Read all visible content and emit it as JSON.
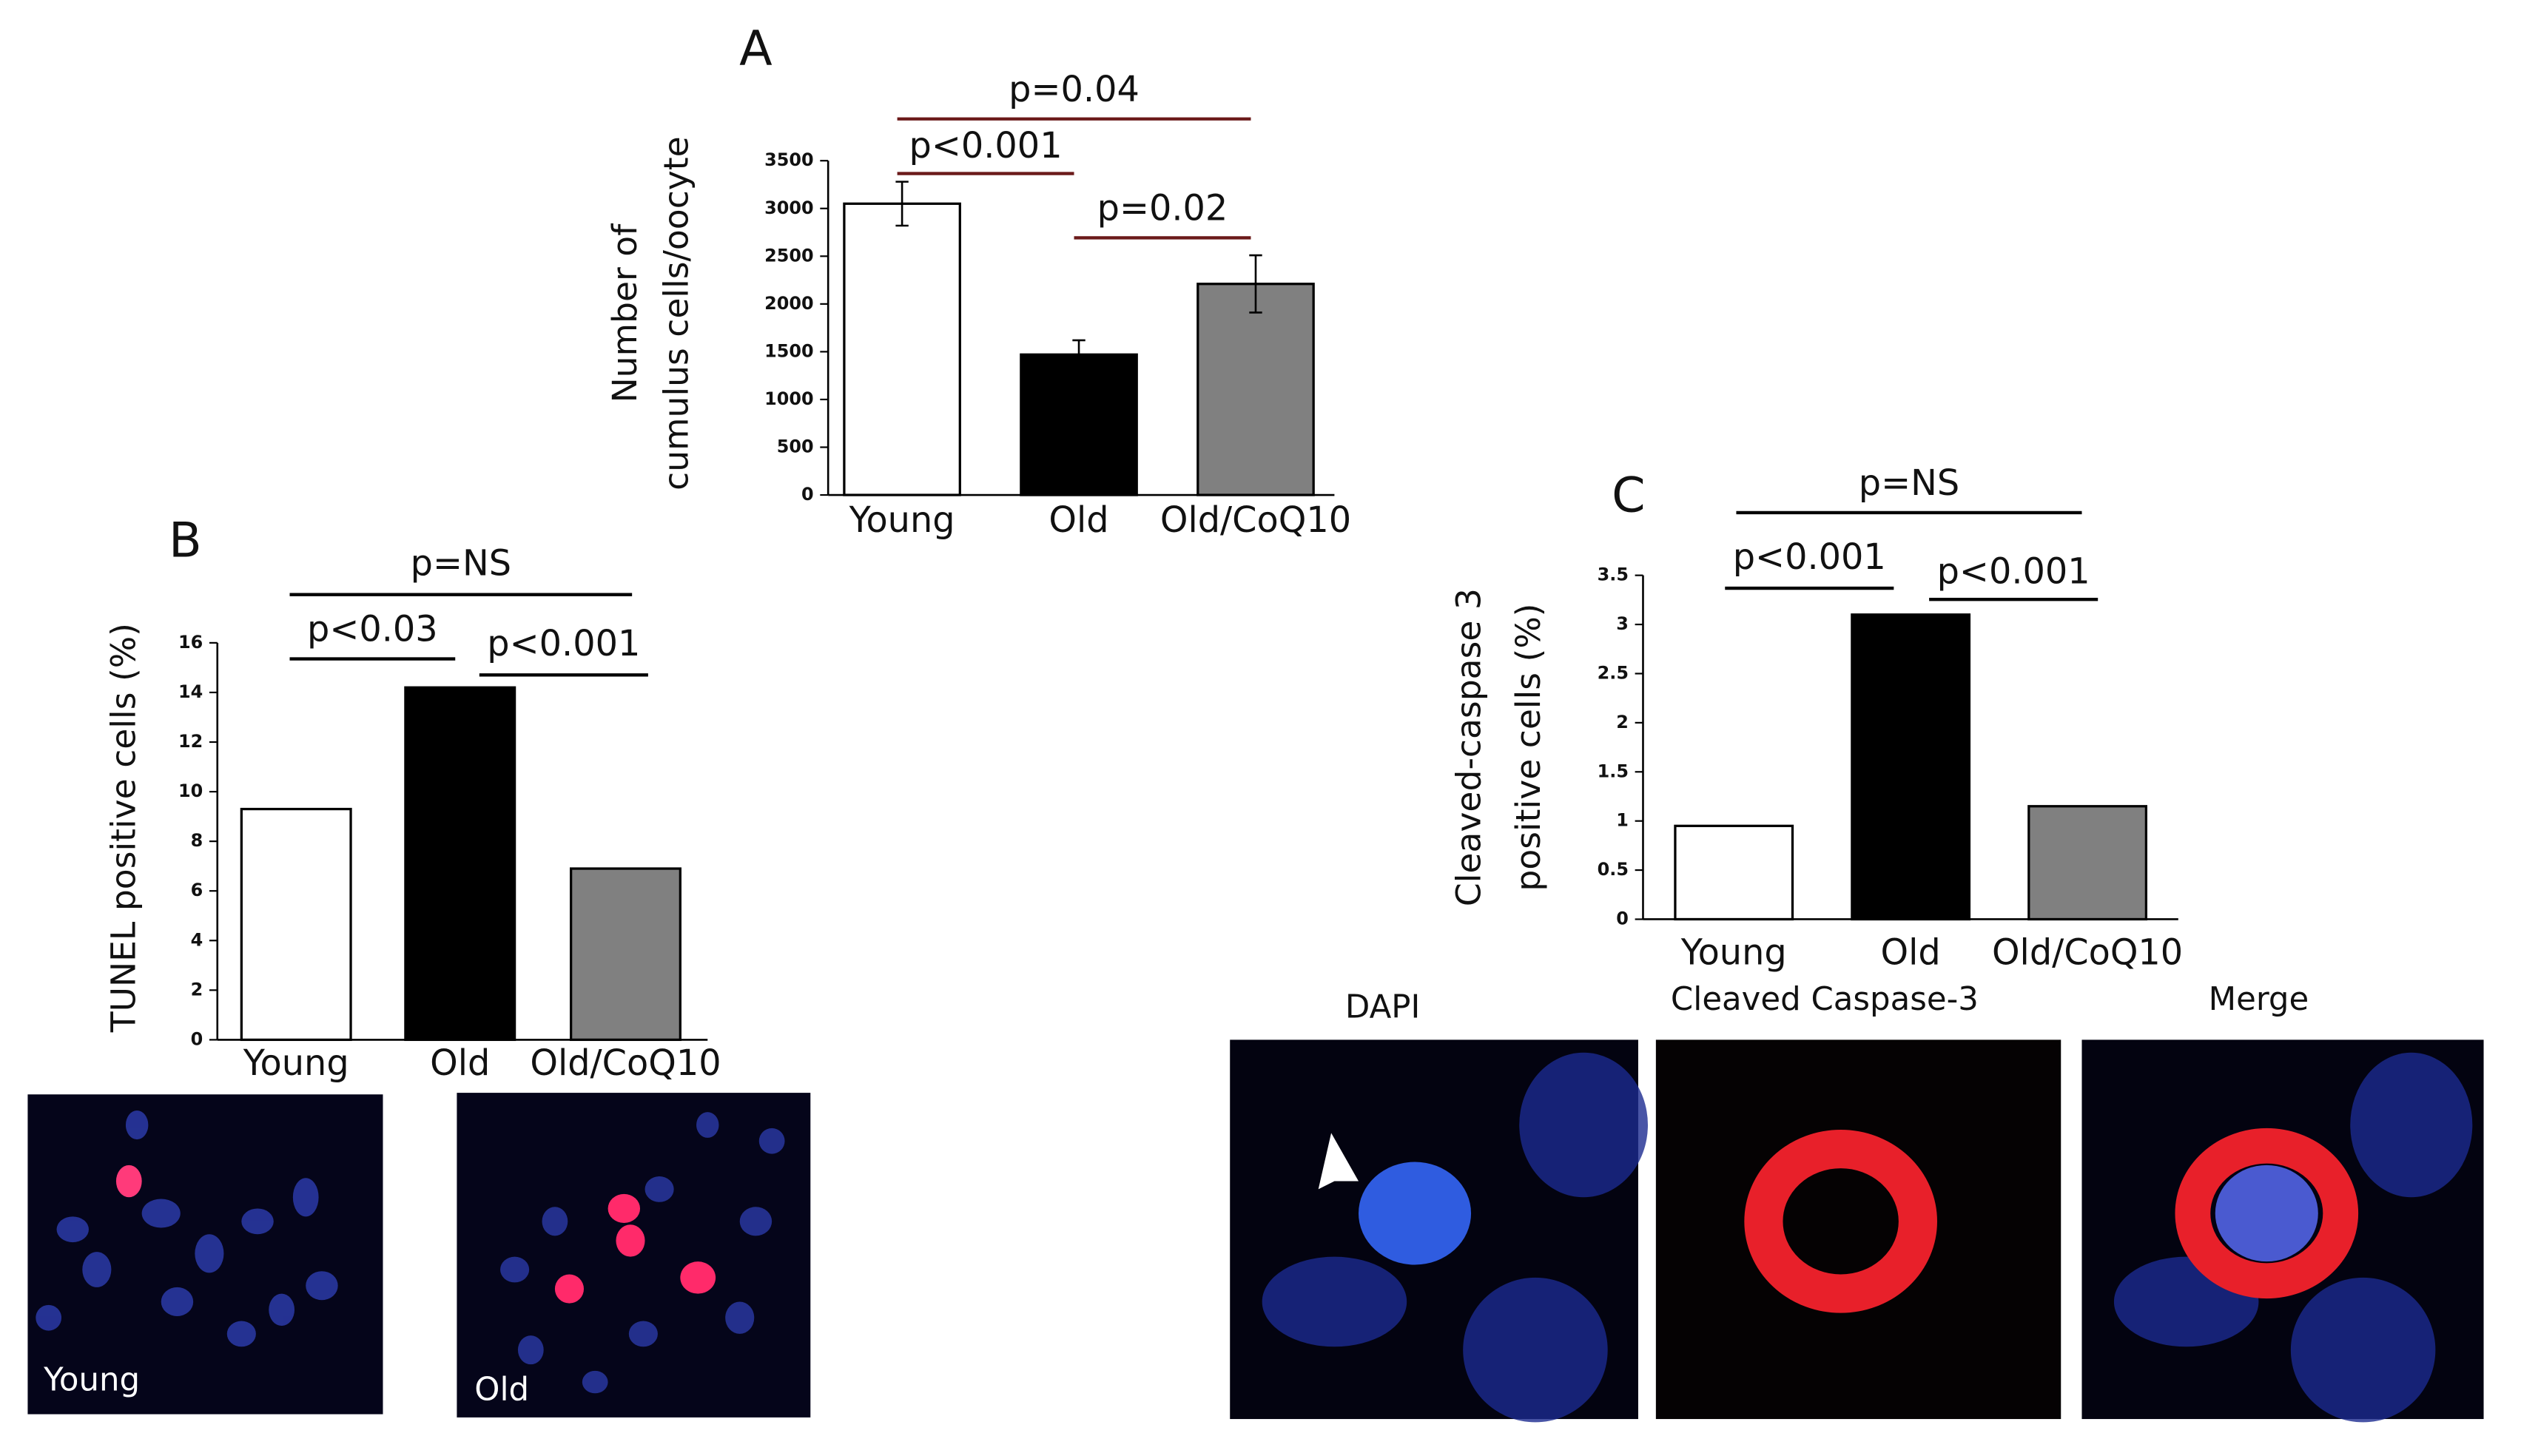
{
  "chart_data": [
    {
      "type": "bar",
      "panel": "A",
      "ylabel": [
        "Number of",
        "cumulus cells/oocyte"
      ],
      "categories": [
        "Young",
        "Old",
        "Old/CoQ10"
      ],
      "values": [
        3050,
        1470,
        2210
      ],
      "errors": [
        230,
        150,
        300
      ],
      "colors": [
        "#ffffff",
        "#000000",
        "#808080"
      ],
      "ylim": [
        0,
        3500
      ],
      "yticks": [
        0,
        500,
        1000,
        1500,
        2000,
        2500,
        3000,
        3500
      ],
      "annotations": [
        "p=0.04",
        "p<0.001",
        "p=0.02"
      ]
    },
    {
      "type": "bar",
      "panel": "B",
      "ylabel": [
        "TUNEL positive cells (%)"
      ],
      "categories": [
        "Young",
        "Old",
        "Old/CoQ10"
      ],
      "values": [
        9.3,
        14.2,
        6.9
      ],
      "colors": [
        "#ffffff",
        "#000000",
        "#808080"
      ],
      "ylim": [
        0,
        16
      ],
      "yticks": [
        0,
        2,
        4,
        6,
        8,
        10,
        12,
        14,
        16
      ],
      "annotations": [
        "p=NS",
        "p<0.03",
        "p<0.001"
      ]
    },
    {
      "type": "bar",
      "panel": "C",
      "ylabel": [
        "Cleaved-caspase 3",
        "positive cells (%)"
      ],
      "categories": [
        "Young",
        "Old",
        "Old/CoQ10"
      ],
      "values": [
        0.95,
        3.1,
        1.15
      ],
      "colors": [
        "#ffffff",
        "#000000",
        "#808080"
      ],
      "ylim": [
        0,
        3.5
      ],
      "yticks": [
        0,
        0.5,
        1,
        1.5,
        2,
        2.5,
        3,
        3.5
      ],
      "annotations": [
        "p=NS",
        "p<0.001",
        "p<0.001"
      ]
    }
  ],
  "images": {
    "tunel": [
      "Young",
      "Old"
    ],
    "caspase": [
      "DAPI",
      "Cleaved Caspase-3",
      "Merge"
    ]
  }
}
